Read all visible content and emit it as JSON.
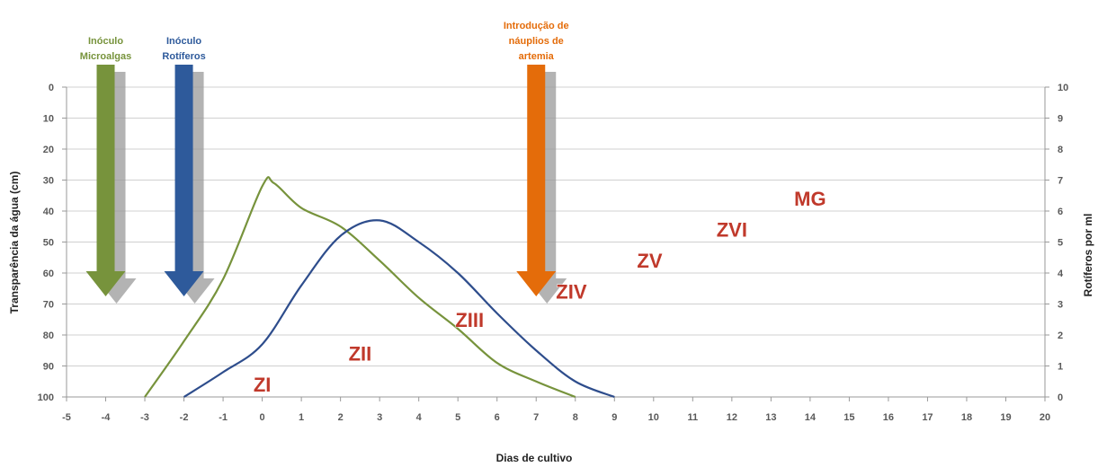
{
  "chart_data": {
    "type": "line",
    "xlabel": "Dias de cultivo",
    "ylabel_left": "Transparência da água (cm)",
    "ylabel_right": "Rotíferos por ml",
    "xlim": [
      -5,
      20
    ],
    "ylim_left": [
      0,
      100
    ],
    "ylim_left_inverted": true,
    "ylim_right": [
      0,
      10
    ],
    "x_ticks": [
      -5,
      -4,
      -3,
      -2,
      -1,
      0,
      1,
      2,
      3,
      4,
      5,
      6,
      7,
      8,
      9,
      10,
      11,
      12,
      13,
      14,
      15,
      16,
      17,
      18,
      19,
      20
    ],
    "y_ticks_left": [
      0,
      10,
      20,
      30,
      40,
      50,
      60,
      70,
      80,
      90,
      100
    ],
    "y_ticks_right": [
      0,
      1,
      2,
      3,
      4,
      5,
      6,
      7,
      8,
      9,
      10
    ],
    "grid": true,
    "series": [
      {
        "axis": "left",
        "color": "#77933c",
        "points": [
          [
            -3,
            100
          ],
          [
            -2,
            82
          ],
          [
            -1,
            62
          ],
          [
            0,
            32
          ],
          [
            0.3,
            31
          ],
          [
            1,
            39
          ],
          [
            2,
            45
          ],
          [
            3,
            56
          ],
          [
            4,
            68
          ],
          [
            5,
            78
          ],
          [
            6,
            89
          ],
          [
            7,
            95
          ],
          [
            8,
            100
          ]
        ]
      },
      {
        "axis": "right",
        "color": "#2e4d8c",
        "points": [
          [
            -2,
            0
          ],
          [
            -1,
            0.8
          ],
          [
            0,
            1.7
          ],
          [
            1,
            3.6
          ],
          [
            2,
            5.2
          ],
          [
            3,
            5.7
          ],
          [
            4,
            5
          ],
          [
            5,
            4
          ],
          [
            6,
            2.7
          ],
          [
            7,
            1.5
          ],
          [
            8,
            0.5
          ],
          [
            9,
            0
          ]
        ]
      }
    ],
    "arrows": [
      {
        "label_lines": [
          "Inóculo",
          "Microalgas"
        ],
        "x": -4,
        "color": "#77933c",
        "label_color": "#77933c"
      },
      {
        "label_lines": [
          "Inóculo",
          "Rotíferos"
        ],
        "x": -2,
        "color": "#2e5a9b",
        "label_color": "#2e5a9b"
      },
      {
        "label_lines": [
          "Introdução de",
          "náuplios de",
          "artemia"
        ],
        "x": 7,
        "color": "#e46c0a",
        "label_color": "#e46c0a"
      }
    ],
    "annotations": [
      {
        "text": "ZI",
        "x": 0,
        "y": 96
      },
      {
        "text": "ZII",
        "x": 2.5,
        "y": 86
      },
      {
        "text": "ZIII",
        "x": 5.3,
        "y": 75
      },
      {
        "text": "ZIV",
        "x": 7.9,
        "y": 66
      },
      {
        "text": "ZV",
        "x": 9.9,
        "y": 56
      },
      {
        "text": "ZVI",
        "x": 12,
        "y": 46
      },
      {
        "text": "MG",
        "x": 14,
        "y": 36
      }
    ]
  }
}
